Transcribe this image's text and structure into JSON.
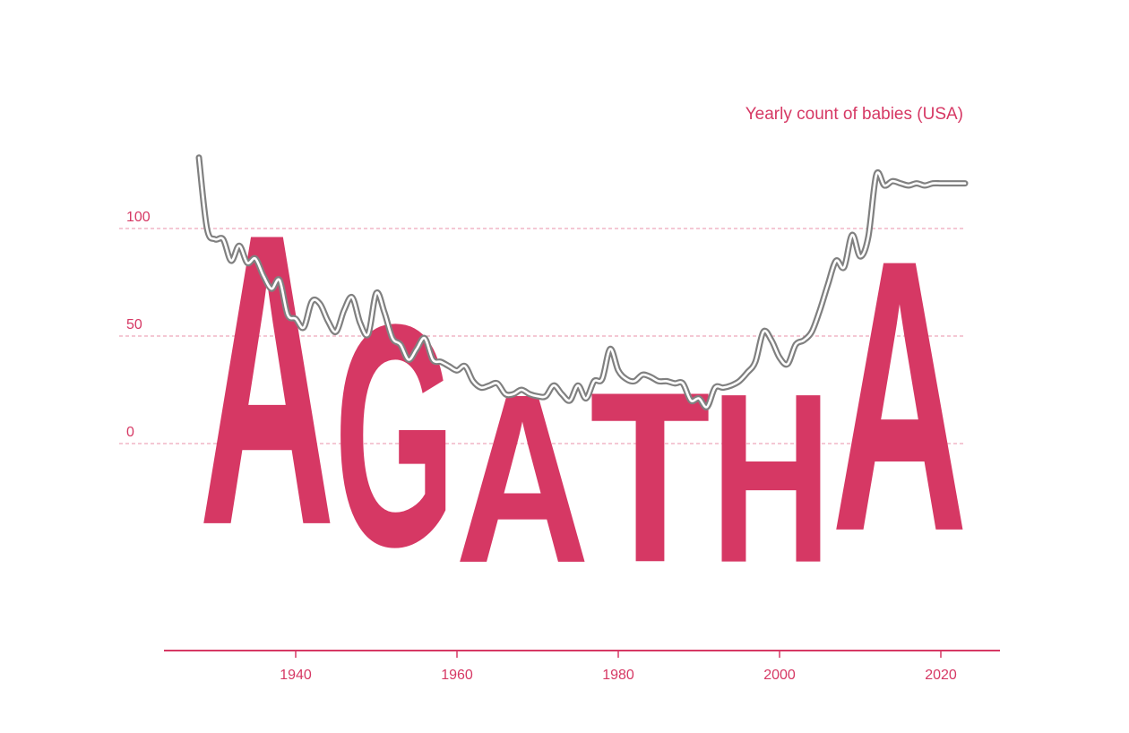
{
  "chart_data": {
    "type": "line",
    "name": "AGATHA",
    "subtitle": "Yearly count of babies (USA)",
    "colors": {
      "accent": "#d63864",
      "line": "#808080"
    },
    "xlim": [
      1927,
      2024
    ],
    "ylim": [
      -80,
      135
    ],
    "x_ticks": [
      "1940",
      "1960",
      "1980",
      "2000",
      "2020"
    ],
    "y_ticks": [
      "0",
      "50",
      "100"
    ],
    "grid": true,
    "series": [
      {
        "x": [
          1928,
          1929,
          1930,
          1931,
          1932,
          1933,
          1934,
          1935,
          1936,
          1937,
          1938,
          1939,
          1940,
          1941,
          1942,
          1943,
          1944,
          1945,
          1946,
          1947,
          1948,
          1949,
          1950,
          1951,
          1952,
          1953,
          1954,
          1955,
          1956,
          1957,
          1958,
          1959,
          1960,
          1961,
          1962,
          1963,
          1964,
          1965,
          1966,
          1967,
          1968,
          1969,
          1970,
          1971,
          1972,
          1973,
          1974,
          1975,
          1976,
          1977,
          1978,
          1979,
          1980,
          1981,
          1982,
          1983,
          1984,
          1985,
          1986,
          1987,
          1988,
          1989,
          1990,
          1991,
          1992,
          1993,
          1994,
          1995,
          1996,
          1997,
          1998,
          1999,
          2000,
          2001,
          2002,
          2003,
          2004,
          2005,
          2006,
          2007,
          2008,
          2009,
          2010,
          2011,
          2012,
          2013,
          2014,
          2015,
          2016,
          2017,
          2018,
          2019,
          2020,
          2021,
          2022,
          2023
        ],
        "y": [
          133,
          100,
          95,
          95,
          85,
          92,
          84,
          86,
          78,
          72,
          76,
          60,
          58,
          54,
          66,
          65,
          57,
          52,
          62,
          68,
          56,
          51,
          70,
          61,
          49,
          46,
          39,
          44,
          49,
          39,
          38,
          36,
          34,
          36,
          29,
          26,
          27,
          28,
          23,
          23,
          25,
          23,
          22,
          22,
          27,
          23,
          20,
          27,
          21,
          29,
          30,
          44,
          34,
          30,
          29,
          32,
          31,
          29,
          29,
          28,
          28,
          20,
          21,
          17,
          26,
          26,
          27,
          29,
          33,
          38,
          52,
          48,
          40,
          37,
          46,
          48,
          52,
          62,
          74,
          85,
          82,
          97,
          87,
          96,
          125,
          120,
          122,
          121,
          120,
          121,
          120,
          121,
          121,
          121,
          121,
          121
        ]
      }
    ]
  }
}
